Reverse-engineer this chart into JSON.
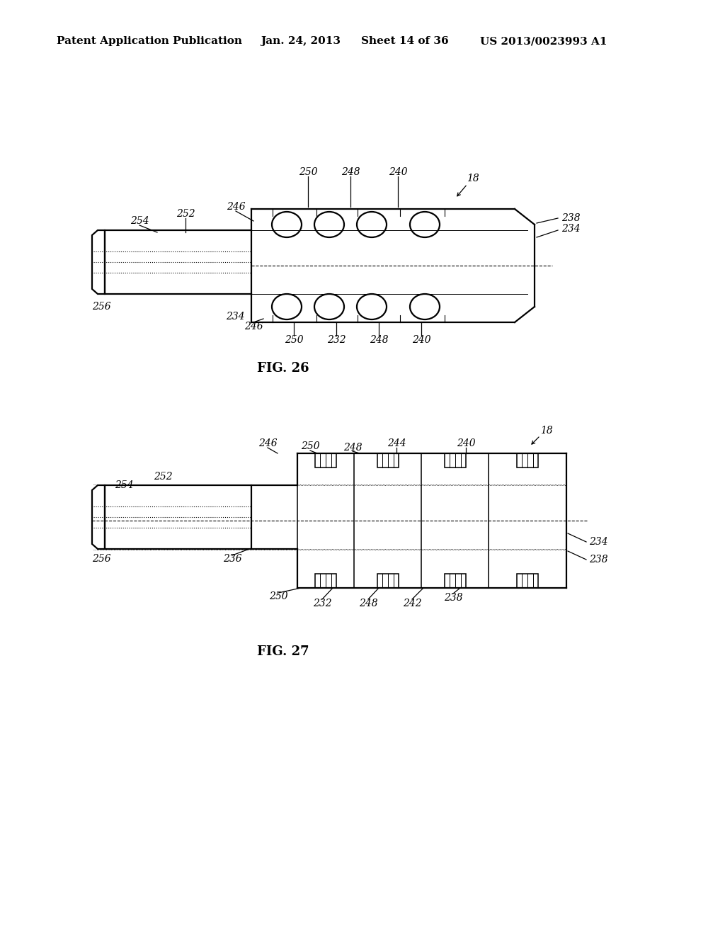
{
  "bg_color": "#ffffff",
  "line_color": "#000000",
  "text_color": "#000000",
  "header_left": "Patent Application Publication",
  "header_mid1": "Jan. 24, 2013",
  "header_mid2": "Sheet 14 of 36",
  "header_right": "US 2013/0023993 A1",
  "fig26_caption": "FIG. 26",
  "fig27_caption": "FIG. 27"
}
